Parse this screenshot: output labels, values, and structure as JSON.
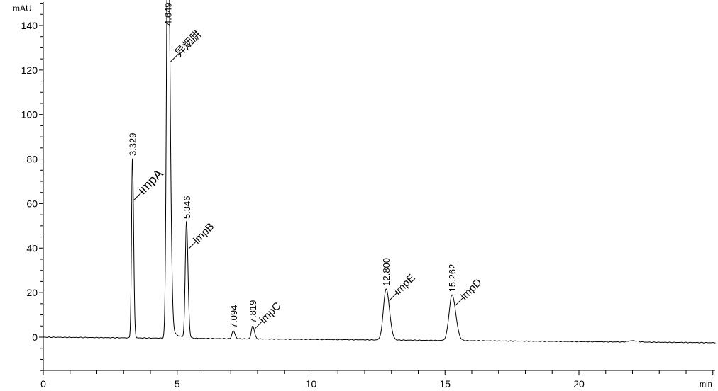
{
  "chart_data": {
    "type": "line",
    "title": "",
    "xlabel": "min",
    "ylabel": "mAU",
    "xlim": [
      0,
      25.1
    ],
    "ylim": [
      -15,
      150
    ],
    "x_ticks": [
      0,
      5,
      10,
      15,
      20
    ],
    "y_ticks": [
      0,
      20,
      40,
      60,
      80,
      100,
      120,
      140
    ],
    "grid": false,
    "line_color": "#000000",
    "baseline_drift": [
      [
        0,
        0
      ],
      [
        25,
        -2.5
      ]
    ],
    "peaks": [
      {
        "rt": 3.329,
        "rt_label": "3.329",
        "name": "impA",
        "height": 80.5,
        "width": 0.035
      },
      {
        "rt": 4.649,
        "rt_label": "4.649",
        "name": "异烟肼",
        "height": 200,
        "width": 0.05
      },
      {
        "rt": 5.346,
        "rt_label": "5.346",
        "name": "impB",
        "height": 52,
        "width": 0.045
      },
      {
        "rt": 7.094,
        "rt_label": "7.094",
        "name": "",
        "height": 3.5,
        "width": 0.05
      },
      {
        "rt": 7.819,
        "rt_label": "7.819",
        "name": "impC",
        "height": 5.8,
        "width": 0.05
      },
      {
        "rt": 12.8,
        "rt_label": "12.800",
        "name": "impE",
        "height": 23,
        "width": 0.1
      },
      {
        "rt": 15.262,
        "rt_label": "15.262",
        "name": "impD",
        "height": 20.5,
        "width": 0.11
      },
      {
        "rt": 22.0,
        "rt_label": "",
        "name": "",
        "height": 0.6,
        "width": 0.15
      }
    ]
  }
}
